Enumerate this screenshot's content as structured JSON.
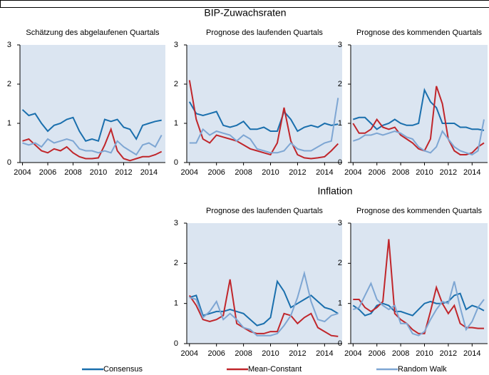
{
  "sections": [
    "BIP-Zuwachsraten",
    "Inflation"
  ],
  "chart_data": [
    {
      "type": "line",
      "title": "Schätzung  des abgelaufenen Quartals",
      "x": [
        2004,
        2004.5,
        2005,
        2005.5,
        2006,
        2006.5,
        2007,
        2007.5,
        2008,
        2008.5,
        2009,
        2009.5,
        2010,
        2010.5,
        2011,
        2011.5,
        2012,
        2012.5,
        2013,
        2013.5,
        2014,
        2014.5,
        2015
      ],
      "xlim": [
        2003.8,
        2015.3
      ],
      "xticks": [
        2004,
        2006,
        2008,
        2010,
        2012,
        2014
      ],
      "ylim": [
        0,
        3
      ],
      "yticks": [
        0,
        1,
        2,
        3
      ],
      "series": [
        {
          "name": "Consensus",
          "color": "#1a6fad",
          "values": [
            1.35,
            1.2,
            1.25,
            1.0,
            0.8,
            0.95,
            1.0,
            1.1,
            1.15,
            0.8,
            0.55,
            0.6,
            0.55,
            1.1,
            1.05,
            1.1,
            0.9,
            0.85,
            0.6,
            0.95,
            1.0,
            1.05,
            1.08
          ]
        },
        {
          "name": "Mean-Constant",
          "color": "#c0262b",
          "values": [
            0.55,
            0.6,
            0.45,
            0.3,
            0.25,
            0.35,
            0.3,
            0.4,
            0.25,
            0.15,
            0.1,
            0.1,
            0.12,
            0.45,
            0.85,
            0.3,
            0.1,
            0.05,
            0.1,
            0.15,
            0.15,
            0.2,
            0.28
          ]
        },
        {
          "name": "Random Walk",
          "color": "#7ea6d3",
          "values": [
            0.5,
            0.45,
            0.5,
            0.4,
            0.6,
            0.5,
            0.55,
            0.6,
            0.55,
            0.35,
            0.3,
            0.3,
            0.25,
            0.3,
            0.25,
            0.55,
            0.4,
            0.3,
            0.2,
            0.45,
            0.5,
            0.4,
            0.7
          ]
        }
      ]
    },
    {
      "type": "line",
      "title": "Prognose des laufenden Quartals",
      "x": [
        2004,
        2004.5,
        2005,
        2005.5,
        2006,
        2006.5,
        2007,
        2007.5,
        2008,
        2008.5,
        2009,
        2009.5,
        2010,
        2010.5,
        2011,
        2011.5,
        2012,
        2012.5,
        2013,
        2013.5,
        2014,
        2014.5,
        2015
      ],
      "xlim": [
        2003.8,
        2015.3
      ],
      "xticks": [
        2004,
        2006,
        2008,
        2010,
        2012,
        2014
      ],
      "ylim": [
        0,
        3
      ],
      "yticks": [
        0,
        1,
        2,
        3
      ],
      "series": [
        {
          "name": "Consensus",
          "color": "#1a6fad",
          "values": [
            1.55,
            1.25,
            1.2,
            1.25,
            1.3,
            0.95,
            0.9,
            0.95,
            1.05,
            0.85,
            0.85,
            0.9,
            0.8,
            0.8,
            1.3,
            1.1,
            0.8,
            0.9,
            0.95,
            0.9,
            1.0,
            0.95,
            0.98
          ]
        },
        {
          "name": "Mean-Constant",
          "color": "#c0262b",
          "values": [
            2.1,
            1.1,
            0.6,
            0.5,
            0.7,
            0.65,
            0.6,
            0.55,
            0.45,
            0.35,
            0.3,
            0.25,
            0.2,
            0.5,
            1.4,
            0.55,
            0.2,
            0.12,
            0.1,
            0.12,
            0.15,
            0.3,
            0.48
          ]
        },
        {
          "name": "Random Walk",
          "color": "#7ea6d3",
          "values": [
            0.5,
            0.5,
            0.85,
            0.7,
            0.8,
            0.75,
            0.7,
            0.55,
            0.7,
            0.6,
            0.35,
            0.3,
            0.25,
            0.25,
            0.3,
            0.5,
            0.35,
            0.3,
            0.3,
            0.4,
            0.5,
            0.55,
            1.65
          ]
        }
      ]
    },
    {
      "type": "line",
      "title": "Prognose des kommenden Quartals",
      "x": [
        2004,
        2004.5,
        2005,
        2005.5,
        2006,
        2006.5,
        2007,
        2007.5,
        2008,
        2008.5,
        2009,
        2009.5,
        2010,
        2010.5,
        2011,
        2011.5,
        2012,
        2012.5,
        2013,
        2013.5,
        2014,
        2014.5,
        2015
      ],
      "xlim": [
        2003.8,
        2015.3
      ],
      "xticks": [
        2004,
        2006,
        2008,
        2010,
        2012,
        2014
      ],
      "ylim": [
        0,
        3
      ],
      "yticks": [
        0,
        1,
        2,
        3
      ],
      "series": [
        {
          "name": "Consensus",
          "color": "#1a6fad",
          "values": [
            1.1,
            1.15,
            1.15,
            1.0,
            0.85,
            0.95,
            1.0,
            1.1,
            1.0,
            0.95,
            0.95,
            1.0,
            1.85,
            1.55,
            1.4,
            1.0,
            1.0,
            1.0,
            0.9,
            0.9,
            0.85,
            0.85,
            0.82
          ]
        },
        {
          "name": "Mean-Constant",
          "color": "#c0262b",
          "values": [
            1.0,
            0.75,
            0.75,
            0.85,
            1.1,
            0.9,
            0.85,
            0.9,
            0.7,
            0.6,
            0.5,
            0.35,
            0.3,
            0.6,
            1.95,
            1.5,
            0.6,
            0.3,
            0.2,
            0.2,
            0.25,
            0.4,
            0.5
          ]
        },
        {
          "name": "Random Walk",
          "color": "#7ea6d3",
          "values": [
            0.55,
            0.6,
            0.7,
            0.7,
            0.75,
            0.7,
            0.75,
            0.8,
            0.75,
            0.65,
            0.6,
            0.4,
            0.3,
            0.25,
            0.4,
            0.8,
            0.6,
            0.4,
            0.3,
            0.25,
            0.2,
            0.3,
            1.1
          ]
        }
      ]
    },
    {
      "type": "line",
      "title": "Prognose des laufenden Quartals",
      "x": [
        2004,
        2004.5,
        2005,
        2005.5,
        2006,
        2006.5,
        2007,
        2007.5,
        2008,
        2008.5,
        2009,
        2009.5,
        2010,
        2010.5,
        2011,
        2011.5,
        2012,
        2012.5,
        2013,
        2013.5,
        2014,
        2014.5,
        2015
      ],
      "xlim": [
        2003.8,
        2015.3
      ],
      "xticks": [
        2004,
        2006,
        2008,
        2010,
        2012,
        2014
      ],
      "ylim": [
        0,
        3
      ],
      "yticks": [
        0,
        1,
        2,
        3
      ],
      "series": [
        {
          "name": "Consensus",
          "color": "#1a6fad",
          "values": [
            1.15,
            1.2,
            0.7,
            0.75,
            0.8,
            0.8,
            0.85,
            0.8,
            0.75,
            0.6,
            0.45,
            0.5,
            0.65,
            1.55,
            1.3,
            0.9,
            1.0,
            1.1,
            1.2,
            1.05,
            0.9,
            0.85,
            0.75
          ]
        },
        {
          "name": "Mean-Constant",
          "color": "#c0262b",
          "values": [
            1.2,
            0.95,
            0.6,
            0.55,
            0.6,
            0.7,
            1.6,
            0.5,
            0.4,
            0.3,
            0.25,
            0.25,
            0.3,
            0.3,
            0.75,
            0.7,
            0.5,
            0.65,
            0.75,
            0.4,
            0.3,
            0.2,
            0.18
          ]
        },
        {
          "name": "Random Walk",
          "color": "#7ea6d3",
          "values": [
            1.15,
            1.1,
            0.65,
            0.8,
            1.05,
            0.6,
            0.75,
            0.6,
            0.4,
            0.35,
            0.2,
            0.2,
            0.2,
            0.25,
            0.45,
            0.7,
            1.15,
            1.75,
            1.05,
            0.6,
            0.55,
            0.7,
            0.75
          ]
        }
      ]
    },
    {
      "type": "line",
      "title": "Prognose des kommenden Quartals",
      "x": [
        2004,
        2004.5,
        2005,
        2005.5,
        2006,
        2006.5,
        2007,
        2007.5,
        2008,
        2008.5,
        2009,
        2009.5,
        2010,
        2010.5,
        2011,
        2011.5,
        2012,
        2012.5,
        2013,
        2013.5,
        2014,
        2014.5,
        2015
      ],
      "xlim": [
        2003.8,
        2015.3
      ],
      "xticks": [
        2004,
        2006,
        2008,
        2010,
        2012,
        2014
      ],
      "ylim": [
        0,
        3
      ],
      "yticks": [
        0,
        1,
        2,
        3
      ],
      "series": [
        {
          "name": "Consensus",
          "color": "#1a6fad",
          "values": [
            0.95,
            0.85,
            0.7,
            0.75,
            0.95,
            1.0,
            0.95,
            0.8,
            0.8,
            0.75,
            0.7,
            0.85,
            1.0,
            1.05,
            1.0,
            1.0,
            1.05,
            1.2,
            1.25,
            0.85,
            0.95,
            0.9,
            0.82
          ]
        },
        {
          "name": "Mean-Constant",
          "color": "#c0262b",
          "values": [
            1.1,
            1.1,
            0.9,
            0.8,
            0.9,
            1.05,
            2.6,
            0.75,
            0.6,
            0.5,
            0.35,
            0.25,
            0.25,
            0.8,
            1.4,
            1.0,
            0.75,
            0.95,
            0.5,
            0.4,
            0.4,
            0.38,
            0.38
          ]
        },
        {
          "name": "Random Walk",
          "color": "#7ea6d3",
          "values": [
            0.85,
            0.9,
            1.2,
            1.5,
            1.1,
            0.95,
            0.85,
            0.95,
            0.5,
            0.5,
            0.25,
            0.2,
            0.3,
            0.6,
            0.85,
            1.05,
            1.0,
            1.55,
            0.9,
            0.35,
            0.55,
            0.9,
            1.1
          ]
        }
      ]
    }
  ]
}
